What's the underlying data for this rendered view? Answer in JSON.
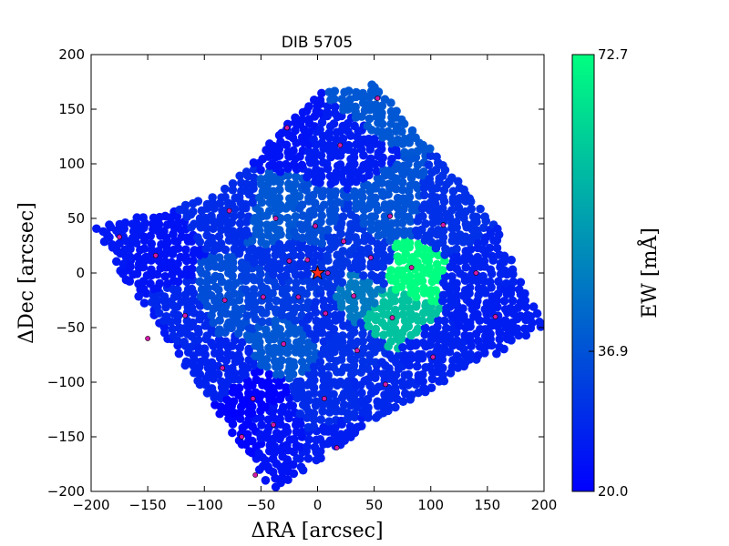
{
  "chart_data": {
    "type": "scatter",
    "title": "DIB 5705",
    "xlabel": "ΔRA [arcsec]",
    "ylabel": "ΔDec [arcsec]",
    "xlim": [
      -200,
      200
    ],
    "ylim": [
      -200,
      200
    ],
    "xticks": [
      -200,
      -150,
      -100,
      -50,
      0,
      50,
      100,
      150,
      200
    ],
    "yticks": [
      -200,
      -150,
      -100,
      -50,
      0,
      50,
      100,
      150,
      200
    ],
    "colorbar": {
      "label": "EW [mÅ]",
      "min": 20.0,
      "max": 72.7,
      "ticks": [
        20.0,
        36.9,
        72.7
      ],
      "tick_labels": [
        "20.0",
        "36.9",
        "72.7"
      ],
      "colors": [
        "#0000ff",
        "#00ff80"
      ]
    },
    "star": {
      "x": 0,
      "y": 0,
      "color": "#ff2a1a"
    },
    "bins": [
      {
        "x": 53,
        "y": 160,
        "ew": 38
      },
      {
        "x": -27,
        "y": 133,
        "ew": 24
      },
      {
        "x": 20,
        "y": 117,
        "ew": 26
      },
      {
        "x": -78,
        "y": 57,
        "ew": 29
      },
      {
        "x": -37,
        "y": 50,
        "ew": 38
      },
      {
        "x": -2,
        "y": 43,
        "ew": 36
      },
      {
        "x": 64,
        "y": 52,
        "ew": 37
      },
      {
        "x": 111,
        "y": 44,
        "ew": 30
      },
      {
        "x": 23,
        "y": 29,
        "ew": 31
      },
      {
        "x": -143,
        "y": 16,
        "ew": 24
      },
      {
        "x": -25,
        "y": 11,
        "ew": 30
      },
      {
        "x": -9,
        "y": 12,
        "ew": 29
      },
      {
        "x": 9,
        "y": 0,
        "ew": 31
      },
      {
        "x": 47,
        "y": 14,
        "ew": 30
      },
      {
        "x": 83,
        "y": 5,
        "ew": 72.7
      },
      {
        "x": -82,
        "y": -25,
        "ew": 36
      },
      {
        "x": -48,
        "y": -22,
        "ew": 33
      },
      {
        "x": -17,
        "y": -22,
        "ew": 32
      },
      {
        "x": 32,
        "y": -21,
        "ew": 45
      },
      {
        "x": -117,
        "y": -39,
        "ew": 28
      },
      {
        "x": 7,
        "y": -37,
        "ew": 29
      },
      {
        "x": 66,
        "y": -41,
        "ew": 60
      },
      {
        "x": 157,
        "y": -40,
        "ew": 26
      },
      {
        "x": -30,
        "y": -65,
        "ew": 38
      },
      {
        "x": 35,
        "y": -71,
        "ew": 30
      },
      {
        "x": -84,
        "y": -87,
        "ew": 27
      },
      {
        "x": 102,
        "y": -77,
        "ew": 27
      },
      {
        "x": 60,
        "y": -102,
        "ew": 28
      },
      {
        "x": -57,
        "y": -115,
        "ew": 20
      },
      {
        "x": 6,
        "y": -115,
        "ew": 29
      },
      {
        "x": -39,
        "y": -139,
        "ew": 24
      },
      {
        "x": -67,
        "y": -150,
        "ew": 21
      },
      {
        "x": -55,
        "y": -185,
        "ew": 24
      },
      {
        "x": 17,
        "y": -160,
        "ew": 26
      },
      {
        "x": -175,
        "y": 33,
        "ew": 25
      },
      {
        "x": 140,
        "y": 0,
        "ew": 27
      },
      {
        "x": -150,
        "y": -60,
        "ew": 25
      }
    ]
  }
}
